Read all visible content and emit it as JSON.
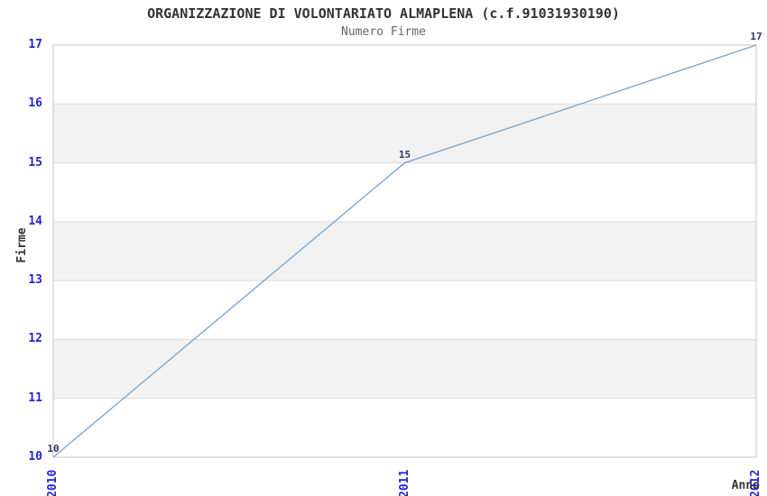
{
  "chart_data": {
    "type": "line",
    "title": "ORGANIZZAZIONE DI VOLONTARIATO ALMAPLENA (c.f.91031930190)",
    "subtitle": "Numero Firme",
    "xlabel": "Anno",
    "ylabel": "Firme",
    "x": [
      2010,
      2011,
      2012
    ],
    "series": [
      {
        "name": "Numero Firme",
        "values": [
          10,
          15,
          17
        ]
      }
    ],
    "point_labels": [
      "10",
      "15",
      "17"
    ],
    "xticks": [
      "2010",
      "2011",
      "2012"
    ],
    "yticks": [
      10,
      11,
      12,
      13,
      14,
      15,
      16,
      17
    ],
    "xlim": [
      2010,
      2012
    ],
    "ylim": [
      10,
      17
    ],
    "grid": "horizontal",
    "legend": "none",
    "plot_bands_alternating": true,
    "colors": {
      "line": "#79a7d9",
      "tick_label": "#2323cc",
      "point_label": "#333366",
      "band_gray": "#f2f2f2",
      "band_white": "#ffffff",
      "grid_line": "#dadada",
      "plot_border": "#c6c6c6",
      "title": "#333333",
      "subtitle": "#666666",
      "axis_title": "#333333",
      "background": "#ffffff"
    }
  }
}
